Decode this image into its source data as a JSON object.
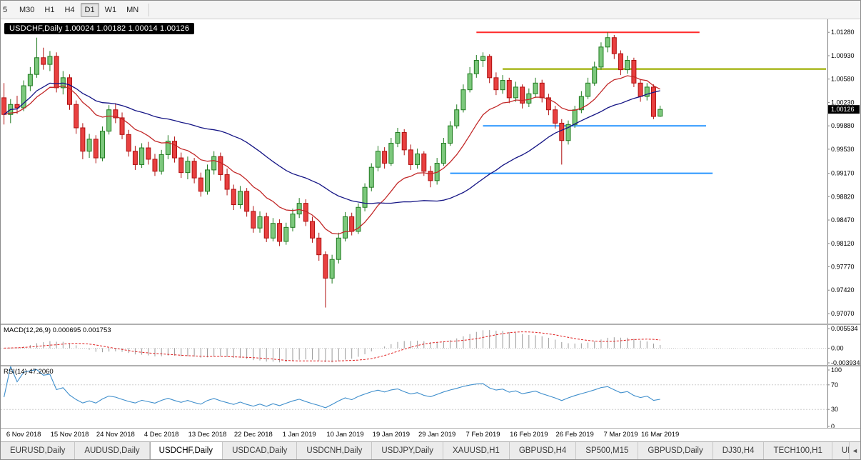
{
  "toolbar": {
    "timeframes": [
      "5",
      "M30",
      "H1",
      "H4",
      "D1",
      "W1",
      "MN"
    ],
    "active_timeframe": "D1"
  },
  "chart_header": {
    "symbol": "USDCHF",
    "timeframe": "Daily",
    "text": "USDCHF,Daily 1.00024 1.00182 1.00014 1.00126"
  },
  "indicators": {
    "macd_label": "MACD(12,26,9) 0.000695 0.001753",
    "rsi_label": "RSI(14) 47.2060"
  },
  "bottom_tabs": {
    "tabs": [
      "EURUSD,Daily",
      "AUDUSD,Daily",
      "USDCHF,Daily",
      "USDCAD,Daily",
      "USDCNH,Daily",
      "USDJPY,Daily",
      "XAUUSD,H1",
      "GBPUSD,H4",
      "SP500,M15",
      "GBPUSD,Daily",
      "DJ30,H4",
      "TECH100,H1",
      "UI"
    ],
    "active": "USDCHF,Daily",
    "scroll_left_icon": "◄"
  },
  "chart_data": [
    {
      "type": "candlestick",
      "title": "USDCHF,Daily",
      "ylim": [
        0.9692,
        1.01475
      ],
      "right_shift_bars": 25,
      "up_fill": "#7CC87C",
      "up_border": "#1F7A1F",
      "down_fill": "#E84040",
      "down_border": "#B01010",
      "last_price": 1.00126,
      "last_price_label": "1.00126",
      "y_ticks": [
        "1.01280",
        "1.00930",
        "1.00580",
        "1.00230",
        "0.99880",
        "0.99530",
        "0.99170",
        "0.98820",
        "0.98470",
        "0.98120",
        "0.97770",
        "0.97420",
        "0.97070"
      ],
      "x_ticks": [
        {
          "i": 3,
          "l": "6 Nov 2018"
        },
        {
          "i": 10,
          "l": "15 Nov 2018"
        },
        {
          "i": 17,
          "l": "24 Nov 2018"
        },
        {
          "i": 24,
          "l": "4 Dec 2018"
        },
        {
          "i": 31,
          "l": "13 Dec 2018"
        },
        {
          "i": 38,
          "l": "22 Dec 2018"
        },
        {
          "i": 45,
          "l": "1 Jan 2019"
        },
        {
          "i": 52,
          "l": "10 Jan 2019"
        },
        {
          "i": 59,
          "l": "19 Jan 2019"
        },
        {
          "i": 66,
          "l": "29 Jan 2019"
        },
        {
          "i": 73,
          "l": "7 Feb 2019"
        },
        {
          "i": 80,
          "l": "16 Feb 2019"
        },
        {
          "i": 87,
          "l": "26 Feb 2019"
        },
        {
          "i": 94,
          "l": "7 Mar 2019"
        },
        {
          "i": 100,
          "l": "16 Mar 2019"
        }
      ],
      "overlays": {
        "moving_averages": [
          {
            "period": 13,
            "method": "ema",
            "color": "#C22828"
          },
          {
            "period": 34,
            "method": "sma",
            "color": "#151585"
          }
        ],
        "hlines": [
          {
            "price": 1.0128,
            "from_bar": 72,
            "to_bar": 106,
            "color": "#FF2A2A",
            "width": 2
          },
          {
            "price": 1.0073,
            "from_bar": 76,
            "to_bar": 126,
            "color": "#A9B821",
            "width": 2.5
          },
          {
            "price": 0.9988,
            "from_bar": 73,
            "to_bar": 107,
            "color": "#1E90FF",
            "width": 1.8
          },
          {
            "price": 0.9917,
            "from_bar": 68,
            "to_bar": 108,
            "color": "#1E90FF",
            "width": 1.8
          }
        ]
      },
      "open_high_low_close": [
        [
          1.003,
          1.0052,
          0.999,
          1.0005
        ],
        [
          1.0005,
          1.0028,
          0.9992,
          1.002
        ],
        [
          1.002,
          1.0033,
          1.0006,
          1.0015
        ],
        [
          1.0015,
          1.0056,
          1.001,
          1.0048
        ],
        [
          1.0048,
          1.0076,
          1.004,
          1.0065
        ],
        [
          1.0065,
          1.012,
          1.006,
          1.009
        ],
        [
          1.009,
          1.0105,
          1.0072,
          1.008
        ],
        [
          1.008,
          1.01,
          1.007,
          1.0092
        ],
        [
          1.0092,
          1.0098,
          1.0038,
          1.0045
        ],
        [
          1.0045,
          1.007,
          1.0035,
          1.006
        ],
        [
          1.006,
          1.0065,
          1.0012,
          1.002
        ],
        [
          1.002,
          1.0026,
          0.9976,
          0.9985
        ],
        [
          0.9985,
          0.9992,
          0.9938,
          0.995
        ],
        [
          0.995,
          0.9976,
          0.994,
          0.9968
        ],
        [
          0.9968,
          0.9974,
          0.9932,
          0.994
        ],
        [
          0.994,
          0.9987,
          0.9935,
          0.998
        ],
        [
          0.998,
          1.0019,
          0.9975,
          1.0012
        ],
        [
          1.0012,
          1.0022,
          0.9992,
          1.0
        ],
        [
          1.0,
          1.0008,
          0.9968,
          0.9975
        ],
        [
          0.9975,
          0.9982,
          0.9942,
          0.995
        ],
        [
          0.995,
          0.9958,
          0.9922,
          0.993
        ],
        [
          0.993,
          0.9962,
          0.9925,
          0.9955
        ],
        [
          0.9955,
          0.9964,
          0.993,
          0.9938
        ],
        [
          0.9938,
          0.9946,
          0.9913,
          0.992
        ],
        [
          0.992,
          0.9952,
          0.9915,
          0.9945
        ],
        [
          0.9945,
          0.9974,
          0.9938,
          0.9965
        ],
        [
          0.9965,
          0.9972,
          0.9933,
          0.994
        ],
        [
          0.994,
          0.9948,
          0.991,
          0.9918
        ],
        [
          0.9918,
          0.9942,
          0.9908,
          0.9935
        ],
        [
          0.9935,
          0.994,
          0.9902,
          0.991
        ],
        [
          0.991,
          0.9918,
          0.9882,
          0.989
        ],
        [
          0.989,
          0.993,
          0.9885,
          0.9922
        ],
        [
          0.9922,
          0.995,
          0.9915,
          0.9942
        ],
        [
          0.9942,
          0.9948,
          0.9906,
          0.9915
        ],
        [
          0.9915,
          0.9924,
          0.9884,
          0.9893
        ],
        [
          0.9893,
          0.99,
          0.9862,
          0.987
        ],
        [
          0.987,
          0.9898,
          0.9864,
          0.989
        ],
        [
          0.989,
          0.9895,
          0.9852,
          0.986
        ],
        [
          0.986,
          0.9868,
          0.9828,
          0.9835
        ],
        [
          0.9835,
          0.986,
          0.9828,
          0.9852
        ],
        [
          0.9852,
          0.9858,
          0.9814,
          0.982
        ],
        [
          0.982,
          0.985,
          0.9815,
          0.9842
        ],
        [
          0.9842,
          0.9848,
          0.9808,
          0.9815
        ],
        [
          0.9815,
          0.9843,
          0.981,
          0.9836
        ],
        [
          0.9836,
          0.9864,
          0.983,
          0.9856
        ],
        [
          0.9856,
          0.988,
          0.985,
          0.9872
        ],
        [
          0.9872,
          0.9878,
          0.9838,
          0.9845
        ],
        [
          0.9845,
          0.9852,
          0.9813,
          0.982
        ],
        [
          0.982,
          0.9828,
          0.9786,
          0.9795
        ],
        [
          0.9795,
          0.98,
          0.9716,
          0.976
        ],
        [
          0.976,
          0.9795,
          0.9752,
          0.9788
        ],
        [
          0.9788,
          0.9828,
          0.9782,
          0.982
        ],
        [
          0.982,
          0.9859,
          0.9815,
          0.9852
        ],
        [
          0.9852,
          0.9858,
          0.9824,
          0.983
        ],
        [
          0.983,
          0.9872,
          0.9826,
          0.9866
        ],
        [
          0.9866,
          0.9902,
          0.986,
          0.9896
        ],
        [
          0.9896,
          0.9932,
          0.989,
          0.9926
        ],
        [
          0.9926,
          0.9958,
          0.992,
          0.995
        ],
        [
          0.995,
          0.9956,
          0.9924,
          0.9932
        ],
        [
          0.9932,
          0.997,
          0.9928,
          0.9962
        ],
        [
          0.9962,
          0.9985,
          0.9956,
          0.9978
        ],
        [
          0.9978,
          0.9983,
          0.9944,
          0.9952
        ],
        [
          0.9952,
          0.996,
          0.9922,
          0.993
        ],
        [
          0.993,
          0.9954,
          0.9924,
          0.9946
        ],
        [
          0.9946,
          0.995,
          0.9913,
          0.992
        ],
        [
          0.992,
          0.9928,
          0.9896,
          0.9906
        ],
        [
          0.9906,
          0.994,
          0.99,
          0.9932
        ],
        [
          0.9932,
          0.997,
          0.9928,
          0.9962
        ],
        [
          0.9962,
          0.9995,
          0.9958,
          0.9988
        ],
        [
          0.9988,
          1.002,
          0.9984,
          1.0012
        ],
        [
          1.0012,
          1.005,
          1.0008,
          1.0042
        ],
        [
          1.0042,
          1.0076,
          1.0038,
          1.0066
        ],
        [
          1.0066,
          1.0094,
          1.006,
          1.0086
        ],
        [
          1.0086,
          1.0098,
          1.0076,
          1.0092
        ],
        [
          1.0092,
          1.0095,
          1.0052,
          1.006
        ],
        [
          1.006,
          1.0068,
          1.0034,
          1.0042
        ],
        [
          1.0042,
          1.0064,
          1.0036,
          1.0056
        ],
        [
          1.0056,
          1.006,
          1.0022,
          1.003
        ],
        [
          1.003,
          1.0054,
          1.0024,
          1.0046
        ],
        [
          1.0046,
          1.005,
          1.0014,
          1.0022
        ],
        [
          1.0022,
          1.0044,
          1.0016,
          1.0036
        ],
        [
          1.0036,
          1.006,
          1.003,
          1.0052
        ],
        [
          1.0052,
          1.0057,
          1.0023,
          1.003
        ],
        [
          1.003,
          1.0036,
          1.0004,
          1.0012
        ],
        [
          1.0012,
          1.0018,
          0.9984,
          0.9992
        ],
        [
          0.9992,
          0.9998,
          0.993,
          0.9966
        ],
        [
          0.9966,
          0.9996,
          0.996,
          0.999
        ],
        [
          0.999,
          1.0018,
          0.9985,
          1.0012
        ],
        [
          1.0012,
          1.004,
          1.0007,
          1.0032
        ],
        [
          1.0032,
          1.006,
          1.0028,
          1.0052
        ],
        [
          1.0052,
          1.0084,
          1.0048,
          1.0076
        ],
        [
          1.0076,
          1.0113,
          1.0072,
          1.0106
        ],
        [
          1.0106,
          1.0128,
          1.0098,
          1.012
        ],
        [
          1.012,
          1.0124,
          1.0088,
          1.0096
        ],
        [
          1.0096,
          1.0101,
          1.0064,
          1.0072
        ],
        [
          1.0072,
          1.0093,
          1.0066,
          1.0086
        ],
        [
          1.0086,
          1.009,
          1.0046,
          1.0052
        ],
        [
          1.0052,
          1.0058,
          1.0024,
          1.0032
        ],
        [
          1.0032,
          1.0052,
          1.0026,
          1.0046
        ],
        [
          1.0046,
          1.005,
          0.9998,
          1.0002
        ],
        [
          1.00024,
          1.00182,
          1.00014,
          1.00126
        ]
      ]
    },
    {
      "type": "macd",
      "params": [
        12,
        26,
        9
      ],
      "values": [
        "0.000695",
        "0.001753"
      ],
      "ylim": [
        -0.0045,
        0.0062
      ],
      "histogram_color": "#9A9A9A",
      "signal_color": "#E02020",
      "y_ticks": [
        {
          "value": 0.005534,
          "label": "0.005534"
        },
        {
          "value": 0,
          "label": "0.00"
        },
        {
          "value": -0.003934,
          "label": "-0.003934"
        }
      ]
    },
    {
      "type": "rsi",
      "period": 14,
      "value": "47.2060",
      "ylim": [
        0,
        100
      ],
      "levels": [
        30,
        70
      ],
      "line_color": "#3E8ECC",
      "y_ticks": [
        {
          "value": 100,
          "label": "100"
        },
        {
          "value": 70,
          "label": "70"
        },
        {
          "value": 30,
          "label": "30"
        },
        {
          "value": 0,
          "label": "0"
        }
      ]
    }
  ]
}
